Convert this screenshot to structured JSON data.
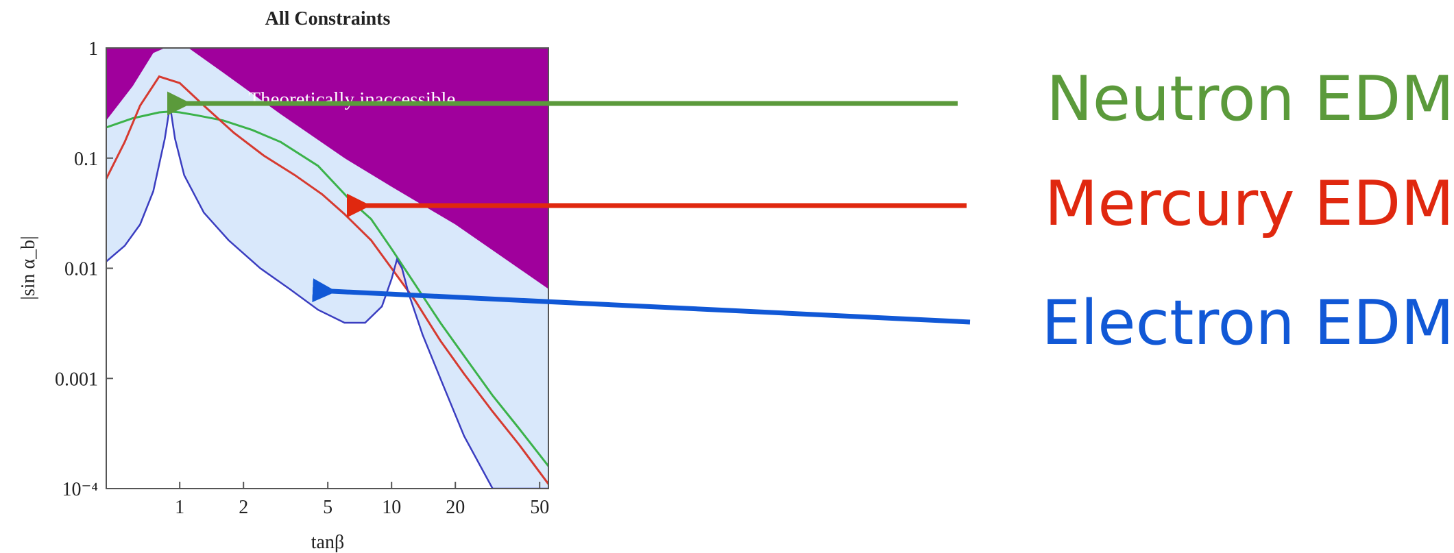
{
  "chart_data": {
    "type": "area",
    "title": "All Constraints",
    "xlabel": "tanβ",
    "ylabel": "|sin α_b|",
    "x_scale": "log",
    "y_scale": "log",
    "xlim": [
      0.45,
      55
    ],
    "ylim": [
      0.0001,
      1
    ],
    "x_ticks": [
      1,
      2,
      5,
      10,
      20,
      50
    ],
    "x_tick_labels": [
      "1",
      "2",
      "5",
      "10",
      "20",
      "50"
    ],
    "y_ticks": [
      1,
      0.1,
      0.01,
      0.001,
      0.0001
    ],
    "y_tick_labels": [
      "1",
      "0.1",
      "0.01",
      "0.001",
      "10⁻⁴"
    ],
    "grid": false,
    "region_annotation": "Theoretically inaccessible",
    "series": [
      {
        "name": "Neutron EDM",
        "color": "#5b9a3b",
        "line_color": "#3bb24a",
        "x": [
          0.45,
          0.6,
          0.8,
          0.9,
          1.0,
          1.2,
          1.6,
          2.2,
          3.0,
          4.5,
          6.5,
          8.0,
          10,
          13,
          17,
          22,
          30,
          40,
          55
        ],
        "y": [
          0.19,
          0.23,
          0.26,
          0.265,
          0.26,
          0.245,
          0.22,
          0.18,
          0.14,
          0.085,
          0.04,
          0.028,
          0.015,
          0.007,
          0.0032,
          0.0016,
          0.0007,
          0.00035,
          0.00016
        ]
      },
      {
        "name": "Mercury EDM",
        "color": "#e0280f",
        "line_color": "#d63a30",
        "x": [
          0.45,
          0.55,
          0.65,
          0.8,
          1.0,
          1.3,
          1.8,
          2.5,
          3.5,
          4.7,
          6,
          8,
          10,
          13,
          17,
          22,
          30,
          40,
          55
        ],
        "y": [
          0.065,
          0.14,
          0.3,
          0.55,
          0.48,
          0.3,
          0.17,
          0.105,
          0.07,
          0.047,
          0.031,
          0.018,
          0.01,
          0.005,
          0.0022,
          0.0011,
          0.0005,
          0.00025,
          0.00011
        ]
      },
      {
        "name": "Electron EDM",
        "color": "#1158d6",
        "line_color": "#3a3dc0",
        "x": [
          0.45,
          0.55,
          0.65,
          0.75,
          0.85,
          0.9,
          0.95,
          1.05,
          1.3,
          1.7,
          2.4,
          3.3,
          4.5,
          6,
          7.5,
          9,
          10,
          10.6,
          11.2,
          12,
          14,
          17,
          22,
          30,
          42,
          55
        ],
        "y": [
          0.0115,
          0.016,
          0.025,
          0.05,
          0.15,
          0.3,
          0.15,
          0.07,
          0.032,
          0.018,
          0.01,
          0.0065,
          0.0042,
          0.0032,
          0.0032,
          0.0045,
          0.008,
          0.012,
          0.01,
          0.006,
          0.0025,
          0.001,
          0.0003,
          0.0001,
          0.0001,
          0.0001
        ]
      }
    ]
  },
  "legend": {
    "neutron": {
      "label": "Neutron EDM",
      "color": "#5b9a3b"
    },
    "mercury": {
      "label": "Mercury EDM",
      "color": "#e0280f"
    },
    "electron": {
      "label": "Electron EDM",
      "color": "#1158d6"
    }
  },
  "colors": {
    "inaccessible": "#a0009c",
    "electron_fill": "#d9e8fb",
    "mercury_fill": "#fbdada",
    "neutron_fill": "#e7f4e2",
    "frame": "#555555"
  }
}
